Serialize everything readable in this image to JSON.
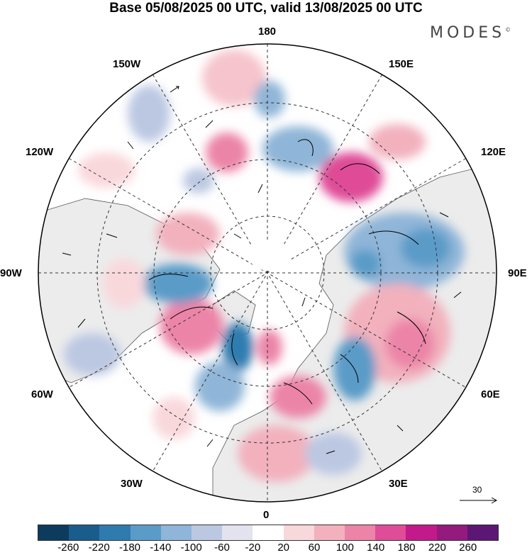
{
  "title": "Base 05/08/2025 00 UTC, valid 13/08/2025 00 UTC",
  "brand": "MODES",
  "brand_mark": "©",
  "longitude_labels": {
    "lon_180": "180",
    "lon_150e": "150E",
    "lon_120e": "120E",
    "lon_90e": "90E",
    "lon_60e": "60E",
    "lon_30e": "30E",
    "lon_0": "0",
    "lon_30w": "30W",
    "lon_60w": "60W",
    "lon_90w": "90W",
    "lon_120w": "120W",
    "lon_150w": "150W"
  },
  "wind_reference": {
    "label": "30"
  },
  "colorbar": {
    "colors": [
      "#0d3b5e",
      "#1a5d8c",
      "#2f7bb0",
      "#5a9bc8",
      "#8fb5d8",
      "#bcc8e2",
      "#e3e3f0",
      "#ffffff",
      "#f9d8dc",
      "#f2b1bd",
      "#ec84a8",
      "#df4c97",
      "#c21a8a",
      "#941a7e",
      "#5c1674"
    ],
    "tick_labels": [
      "-260",
      "-220",
      "-180",
      "-140",
      "-100",
      "-60",
      "-20",
      "20",
      "60",
      "100",
      "140",
      "180",
      "220",
      "260"
    ]
  }
}
